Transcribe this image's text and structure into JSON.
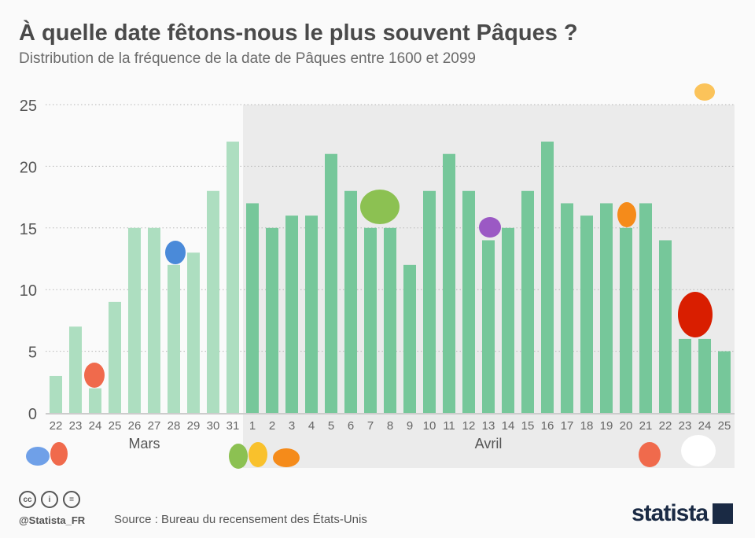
{
  "title": "À quelle date fêtons-nous le plus souvent Pâques ?",
  "subtitle": "Distribution de la fréquence de la date de Pâques entre 1600 et 2099",
  "footer": {
    "handle": "@Statista_FR",
    "source": "Source : Bureau du recensement des États-Unis",
    "logo": "statista"
  },
  "colors": {
    "mars": "#addec0",
    "avril": "#76c79a",
    "avril_bg": "#ebebeb",
    "grid": "#b5b5b5"
  },
  "chart_data": {
    "type": "bar",
    "title": "À quelle date fêtons-nous le plus souvent Pâques ?",
    "xlabel": "",
    "ylabel": "",
    "ylim": [
      0,
      25
    ],
    "yticks": [
      0,
      5,
      10,
      15,
      20,
      25
    ],
    "grid": true,
    "groups": [
      {
        "name": "Mars",
        "categories": [
          "22",
          "23",
          "24",
          "25",
          "26",
          "27",
          "28",
          "29",
          "30",
          "31"
        ],
        "values": [
          3,
          7,
          2,
          9,
          15,
          15,
          12,
          13,
          18,
          22
        ]
      },
      {
        "name": "Avril",
        "categories": [
          "1",
          "2",
          "3",
          "4",
          "5",
          "6",
          "7",
          "8",
          "9",
          "10",
          "11",
          "12",
          "13",
          "14",
          "15",
          "16",
          "17",
          "18",
          "19",
          "20",
          "21",
          "22",
          "23",
          "24",
          "25"
        ],
        "values": [
          17,
          15,
          16,
          16,
          21,
          18,
          15,
          15,
          12,
          18,
          21,
          18,
          14,
          15,
          18,
          22,
          17,
          16,
          17,
          15,
          17,
          14,
          6,
          6,
          5
        ]
      }
    ]
  }
}
